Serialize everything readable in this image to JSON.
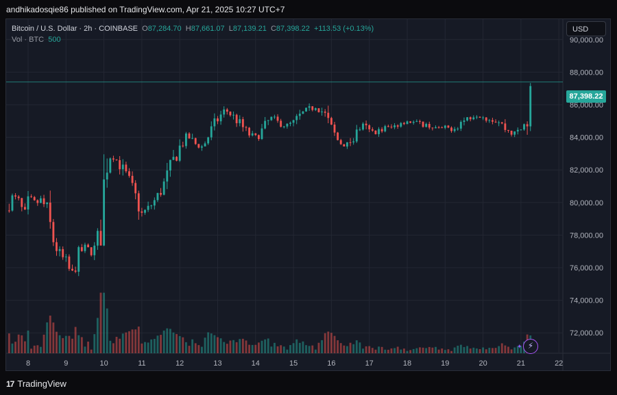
{
  "publisher_line": "andhikadosqie86 published on TradingView.com, Apr 21, 2025 10:27 UTC+7",
  "brand": "TradingView",
  "legend": {
    "symbol": "Bitcoin / U.S. Dollar · 2h · COINBASE",
    "o_label": "O",
    "open": "87,284.70",
    "h_label": "H",
    "high": "87,661.07",
    "l_label": "L",
    "low": "87,139.21",
    "c_label": "C",
    "close": "87,398.22",
    "change": "+113.53 (+0.13%)",
    "vol_label": "Vol · BTC",
    "vol_value": "500"
  },
  "currency": "USD",
  "last_price_tag": "87,398.22",
  "colors": {
    "up": "#26a69a",
    "down": "#ef5350",
    "background": "#161a25",
    "grid": "#232733"
  },
  "chart_data": {
    "type": "candlestick",
    "price_axis_ticks": [
      "90,000.00",
      "88,000.00",
      "86,000.00",
      "84,000.00",
      "82,000.00",
      "80,000.00",
      "78,000.00",
      "76,000.00",
      "74,000.00",
      "72,000.00"
    ],
    "price_axis_values": [
      90000,
      88000,
      86000,
      84000,
      82000,
      80000,
      78000,
      76000,
      74000,
      72000
    ],
    "time_axis_ticks": [
      "8",
      "9",
      "10",
      "11",
      "12",
      "13",
      "14",
      "15",
      "16",
      "17",
      "18",
      "19",
      "20",
      "21",
      "22"
    ],
    "ylim": [
      70750,
      91250
    ],
    "last_price": 87398.22,
    "close_path": [
      [
        7.0,
        77800
      ],
      [
        7.15,
        76000
      ],
      [
        7.3,
        78500
      ],
      [
        7.45,
        79800
      ],
      [
        7.6,
        80400
      ],
      [
        7.75,
        80000
      ],
      [
        7.9,
        79200
      ],
      [
        8.05,
        80300
      ],
      [
        8.2,
        79900
      ],
      [
        8.35,
        80200
      ],
      [
        8.5,
        79400
      ],
      [
        8.65,
        77800
      ],
      [
        8.8,
        76900
      ],
      [
        9.0,
        76300
      ],
      [
        9.15,
        75500
      ],
      [
        9.3,
        76700
      ],
      [
        9.5,
        77300
      ],
      [
        9.7,
        76800
      ],
      [
        9.9,
        78100
      ],
      [
        10.05,
        82300
      ],
      [
        10.2,
        83000
      ],
      [
        10.4,
        82400
      ],
      [
        10.6,
        81600
      ],
      [
        10.8,
        80500
      ],
      [
        11.0,
        79300
      ],
      [
        11.2,
        79700
      ],
      [
        11.4,
        80300
      ],
      [
        11.6,
        81200
      ],
      [
        11.8,
        82400
      ],
      [
        12.0,
        83400
      ],
      [
        12.2,
        84100
      ],
      [
        12.4,
        83600
      ],
      [
        12.6,
        83400
      ],
      [
        12.8,
        84300
      ],
      [
        13.0,
        85100
      ],
      [
        13.2,
        85700
      ],
      [
        13.4,
        85300
      ],
      [
        13.6,
        84800
      ],
      [
        13.8,
        84200
      ],
      [
        14.0,
        84000
      ],
      [
        14.2,
        84500
      ],
      [
        14.4,
        85200
      ],
      [
        14.6,
        84900
      ],
      [
        14.8,
        84700
      ],
      [
        15.0,
        84900
      ],
      [
        15.2,
        85400
      ],
      [
        15.4,
        85700
      ],
      [
        15.6,
        85900
      ],
      [
        15.8,
        85500
      ],
      [
        16.0,
        84500
      ],
      [
        16.2,
        83700
      ],
      [
        16.4,
        83500
      ],
      [
        16.6,
        84000
      ],
      [
        16.8,
        84800
      ],
      [
        17.0,
        84400
      ],
      [
        17.2,
        84300
      ],
      [
        17.4,
        84600
      ],
      [
        17.6,
        84600
      ],
      [
        17.8,
        84900
      ],
      [
        18.0,
        85000
      ],
      [
        18.2,
        84900
      ],
      [
        18.4,
        84800
      ],
      [
        18.6,
        84700
      ],
      [
        18.8,
        84500
      ],
      [
        19.0,
        84600
      ],
      [
        19.2,
        84500
      ],
      [
        19.4,
        84900
      ],
      [
        19.6,
        85200
      ],
      [
        19.8,
        85400
      ],
      [
        20.0,
        85300
      ],
      [
        20.2,
        85100
      ],
      [
        20.4,
        85000
      ],
      [
        20.6,
        84500
      ],
      [
        20.8,
        84200
      ],
      [
        21.0,
        84500
      ],
      [
        21.2,
        85200
      ],
      [
        21.3,
        87398
      ]
    ],
    "volume_scale": "relative"
  }
}
